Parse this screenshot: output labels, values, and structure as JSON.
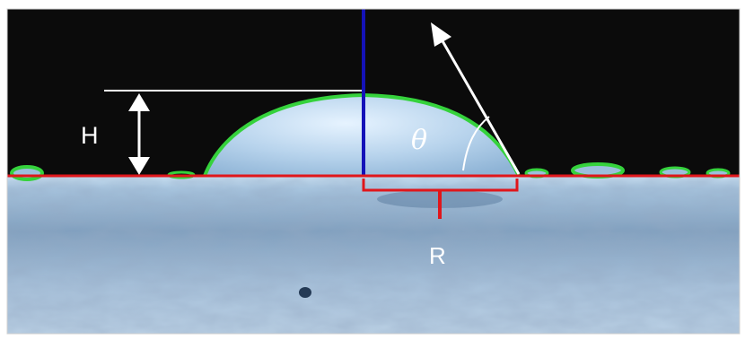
{
  "labels": {
    "height": "H",
    "angle": "θ",
    "radius": "R"
  },
  "colors": {
    "background": "#0b0b0b",
    "substrate": "#9fbfd9",
    "substrate_dark": "#6f8fae",
    "droplet_outline": "#35d23c",
    "baseline": "#e0161b",
    "vertical_axis": "#1412b8",
    "annotation": "#ffffff"
  }
}
